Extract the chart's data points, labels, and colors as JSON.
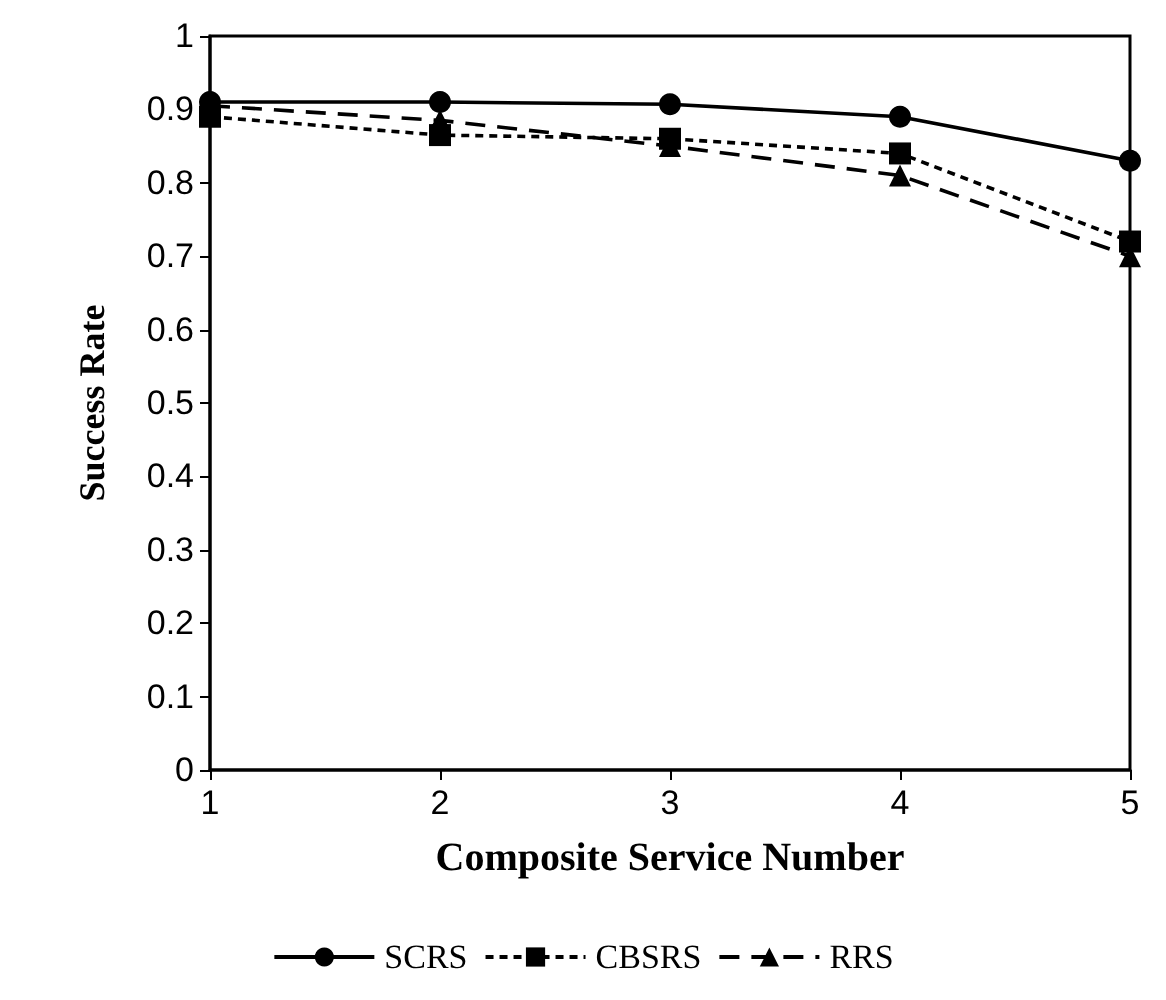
{
  "chart_data": {
    "type": "line",
    "xlabel": "Composite Service Number",
    "ylabel": "Success Rate",
    "x": [
      1,
      2,
      3,
      4,
      5
    ],
    "xlim": [
      1,
      5
    ],
    "xticks": [
      1,
      2,
      3,
      4,
      5
    ],
    "ylim": [
      0,
      1
    ],
    "yticks": [
      0,
      0.1,
      0.2,
      0.3,
      0.4,
      0.5,
      0.6,
      0.7,
      0.8,
      0.9,
      1
    ],
    "grid": false,
    "legend": "bottom",
    "series": [
      {
        "name": "SCRS",
        "color": "#000000",
        "marker": "circle",
        "line_style": "solid",
        "values": [
          0.91,
          0.91,
          0.907,
          0.89,
          0.83
        ]
      },
      {
        "name": "CBSRS",
        "color": "#000000",
        "marker": "square",
        "line_style": "dotted",
        "values": [
          0.89,
          0.865,
          0.86,
          0.84,
          0.72
        ]
      },
      {
        "name": "RRS",
        "color": "#000000",
        "marker": "triangle",
        "line_style": "dashed",
        "values": [
          0.905,
          0.885,
          0.85,
          0.81,
          0.7
        ]
      }
    ]
  }
}
